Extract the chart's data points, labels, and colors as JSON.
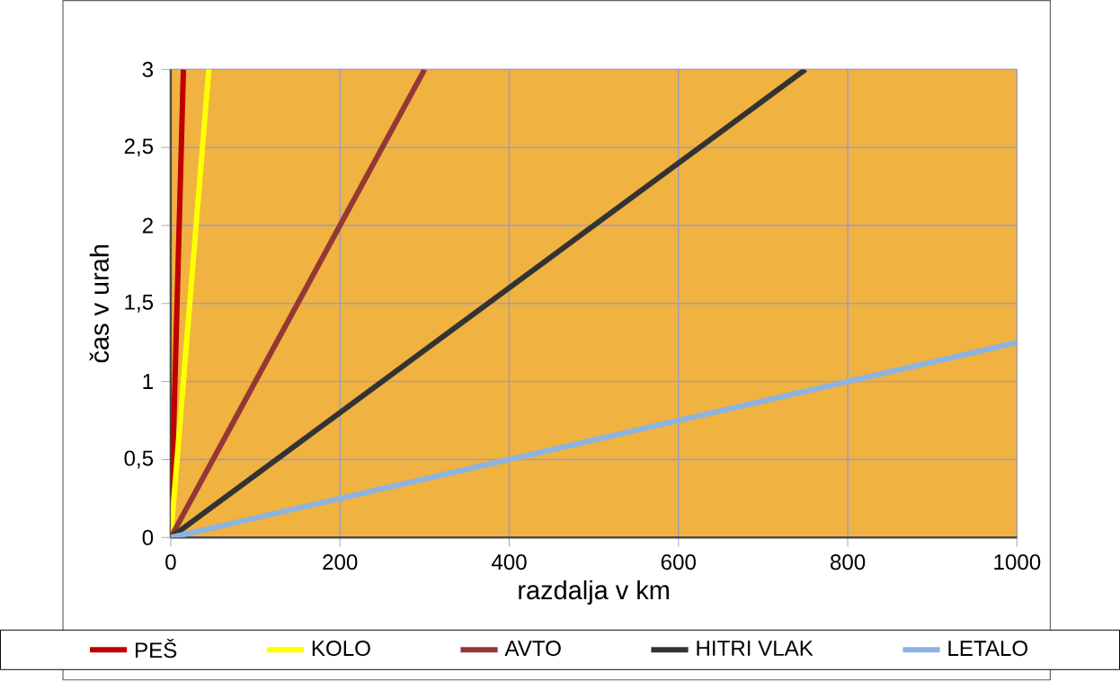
{
  "chart_data": {
    "type": "line",
    "xlabel": "razdalja v km",
    "ylabel": "čas  v  urah",
    "xlim": [
      0,
      1000
    ],
    "ylim": [
      0,
      3
    ],
    "xticks": [
      0,
      200,
      400,
      600,
      800,
      1000
    ],
    "yticks": [
      0,
      {
        "value": 0.5,
        "label": "0,5"
      },
      1,
      {
        "value": 1.5,
        "label": "1,5"
      },
      2,
      {
        "value": 2.5,
        "label": "2,5"
      },
      3
    ],
    "grid": true,
    "legend": "bottom",
    "marker": "none",
    "line_style": "solid",
    "series": [
      {
        "name": "PEŠ",
        "color": "#c00000",
        "x": [
          0,
          15
        ],
        "values": [
          0,
          3
        ]
      },
      {
        "name": "KOLO",
        "color": "#ffff00",
        "x": [
          0,
          45
        ],
        "values": [
          0,
          3
        ]
      },
      {
        "name": "AVTO",
        "color": "#953735",
        "x": [
          0,
          300
        ],
        "values": [
          0,
          3
        ]
      },
      {
        "name": "HITRI VLAK",
        "color": "#333333",
        "x": [
          0,
          750
        ],
        "values": [
          0,
          3
        ]
      },
      {
        "name": "LETALO",
        "color": "#8db3e2",
        "x": [
          0,
          1000
        ],
        "values": [
          0,
          1.25
        ]
      }
    ]
  }
}
